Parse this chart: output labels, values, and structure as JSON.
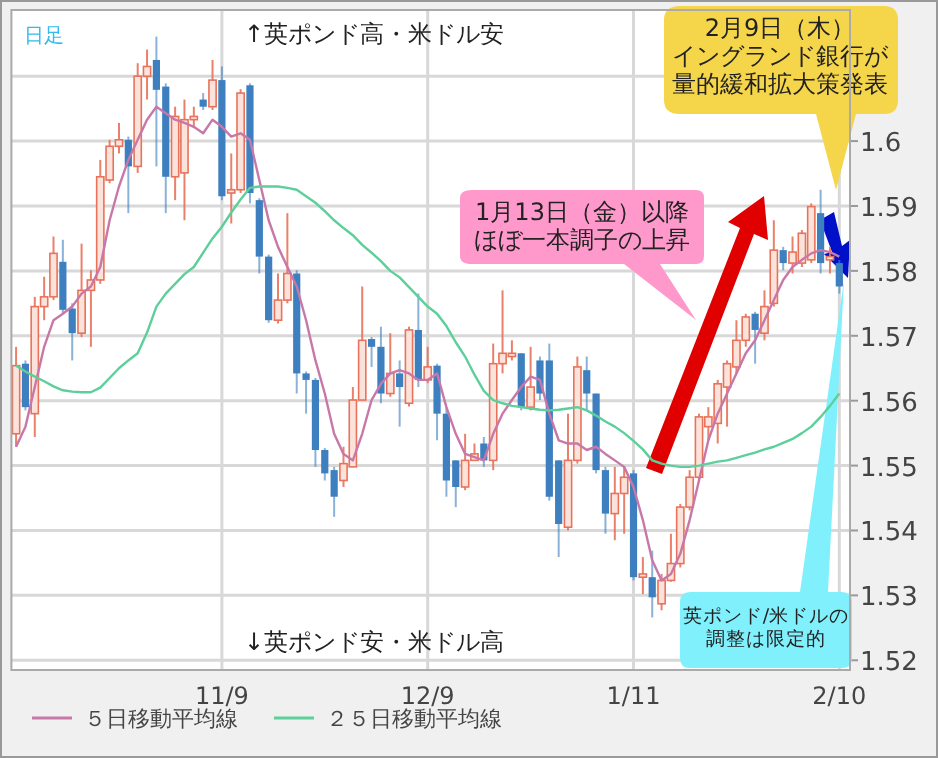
{
  "chart_data": {
    "type": "candlestick",
    "categories": [
      null,
      null,
      null,
      null,
      null,
      null,
      null,
      null,
      null,
      null,
      null,
      null,
      null,
      null,
      null,
      null,
      null,
      null,
      null,
      null,
      null,
      null,
      "11/9",
      null,
      null,
      null,
      null,
      null,
      null,
      null,
      null,
      null,
      null,
      null,
      null,
      null,
      null,
      null,
      null,
      null,
      null,
      null,
      null,
      null,
      "12/9",
      null,
      null,
      null,
      null,
      null,
      null,
      null,
      null,
      null,
      null,
      null,
      null,
      null,
      null,
      null,
      null,
      null,
      null,
      null,
      null,
      null,
      "1/11",
      null,
      null,
      null,
      null,
      null,
      null,
      null,
      null,
      null,
      null,
      null,
      null,
      null,
      null,
      null,
      null,
      null,
      null,
      null,
      null,
      null,
      "2/10"
    ],
    "ohlc": [
      [
        1.5549,
        1.5683,
        1.5529,
        1.5654
      ],
      [
        1.5657,
        1.5662,
        1.5585,
        1.559
      ],
      [
        1.558,
        1.576,
        1.5544,
        1.5745
      ],
      [
        1.5745,
        1.5791,
        1.5724,
        1.576
      ],
      [
        1.576,
        1.5853,
        1.5755,
        1.5827
      ],
      [
        1.5814,
        1.5848,
        1.5734,
        1.574
      ],
      [
        1.5742,
        1.575,
        1.5662,
        1.5704
      ],
      [
        1.5704,
        1.5842,
        1.5698,
        1.577
      ],
      [
        1.577,
        1.5801,
        1.5683,
        1.5786
      ],
      [
        1.5786,
        1.5971,
        1.578,
        1.5945
      ],
      [
        1.594,
        1.6002,
        1.5935,
        1.5992
      ],
      [
        1.5992,
        1.6028,
        1.5981,
        1.6002
      ],
      [
        1.6002,
        1.6007,
        1.5889,
        1.5961
      ],
      [
        1.5961,
        1.612,
        1.5951,
        1.61
      ],
      [
        1.61,
        1.6141,
        1.6064,
        1.6115
      ],
      [
        1.6125,
        1.6161,
        1.5961,
        1.6079
      ],
      [
        1.6084,
        1.6089,
        1.5889,
        1.5945
      ],
      [
        1.5945,
        1.6053,
        1.5909,
        1.6038
      ],
      [
        1.5951,
        1.6064,
        1.5878,
        1.6033
      ],
      [
        1.6033,
        1.6053,
        1.602,
        1.6038
      ],
      [
        1.6064,
        1.6074,
        1.6048,
        1.6053
      ],
      [
        1.6053,
        1.6125,
        1.6048,
        1.6094
      ],
      [
        1.6094,
        1.6115,
        1.5909,
        1.5915
      ],
      [
        1.592,
        1.5981,
        1.5873,
        1.5925
      ],
      [
        1.5925,
        1.608,
        1.592,
        1.6074
      ],
      [
        1.6086,
        1.6089,
        1.5904,
        1.592
      ],
      [
        1.5909,
        1.5912,
        1.5796,
        1.5822
      ],
      [
        1.5822,
        1.5825,
        1.572,
        1.5724
      ],
      [
        1.5724,
        1.5796,
        1.5719,
        1.5755
      ],
      [
        1.5755,
        1.5889,
        1.575,
        1.5796
      ],
      [
        1.5796,
        1.5801,
        1.5611,
        1.5642
      ],
      [
        1.5642,
        1.5645,
        1.558,
        1.5632
      ],
      [
        1.5632,
        1.5635,
        1.5498,
        1.5524
      ],
      [
        1.5524,
        1.5527,
        1.5477,
        1.5488
      ],
      [
        1.5493,
        1.5498,
        1.5421,
        1.5452
      ],
      [
        1.5477,
        1.5529,
        1.5467,
        1.5503
      ],
      [
        1.5498,
        1.5621,
        1.5498,
        1.5601
      ],
      [
        1.5601,
        1.5776,
        1.5601,
        1.5693
      ],
      [
        1.5695,
        1.5698,
        1.5652,
        1.5683
      ],
      [
        1.5683,
        1.5714,
        1.5596,
        1.5611
      ],
      [
        1.5611,
        1.5704,
        1.5606,
        1.5642
      ],
      [
        1.5642,
        1.5662,
        1.556,
        1.5621
      ],
      [
        1.5596,
        1.5714,
        1.5591,
        1.5709
      ],
      [
        1.5709,
        1.5765,
        1.5621,
        1.5632
      ],
      [
        1.5632,
        1.5683,
        1.5627,
        1.5652
      ],
      [
        1.5654,
        1.5657,
        1.5539,
        1.558
      ],
      [
        1.558,
        1.559,
        1.5452,
        1.5477
      ],
      [
        1.5508,
        1.5508,
        1.5436,
        1.5467
      ],
      [
        1.5467,
        1.5549,
        1.5462,
        1.5508
      ],
      [
        1.5508,
        1.5534,
        1.5508,
        1.5518
      ],
      [
        1.5534,
        1.5544,
        1.5498,
        1.5508
      ],
      [
        1.5508,
        1.5688,
        1.5493,
        1.5657
      ],
      [
        1.5657,
        1.577,
        1.5642,
        1.5673
      ],
      [
        1.5668,
        1.5693,
        1.5662,
        1.5673
      ],
      [
        1.5673,
        1.5673,
        1.5585,
        1.559
      ],
      [
        1.559,
        1.5683,
        1.5585,
        1.5621
      ],
      [
        1.5662,
        1.5668,
        1.5601,
        1.5611
      ],
      [
        1.5662,
        1.5688,
        1.5446,
        1.5452
      ],
      [
        1.5508,
        1.5508,
        1.5359,
        1.541
      ],
      [
        1.5405,
        1.558,
        1.54,
        1.5508
      ],
      [
        1.5508,
        1.5668,
        1.5503,
        1.5652
      ],
      [
        1.5647,
        1.5668,
        1.5585,
        1.5611
      ],
      [
        1.5611,
        1.5611,
        1.5488,
        1.5493
      ],
      [
        1.5493,
        1.5498,
        1.5395,
        1.5426
      ],
      [
        1.5426,
        1.5498,
        1.5385,
        1.5457
      ],
      [
        1.5457,
        1.5498,
        1.5395,
        1.5482
      ],
      [
        1.5488,
        1.5493,
        1.5323,
        1.5328
      ],
      [
        1.5328,
        1.5359,
        1.5302,
        1.5333
      ],
      [
        1.5328,
        1.5369,
        1.5266,
        1.5297
      ],
      [
        1.5287,
        1.5333,
        1.5277,
        1.5323
      ],
      [
        1.5323,
        1.5395,
        1.5321,
        1.5349
      ],
      [
        1.5349,
        1.5441,
        1.5343,
        1.5436
      ],
      [
        1.5436,
        1.5493,
        1.5431,
        1.5482
      ],
      [
        1.5482,
        1.558,
        1.5477,
        1.5575
      ],
      [
        1.556,
        1.559,
        1.5539,
        1.5575
      ],
      [
        1.5565,
        1.5632,
        1.5534,
        1.5626
      ],
      [
        1.5621,
        1.5662,
        1.556,
        1.5657
      ],
      [
        1.5652,
        1.5724,
        1.5642,
        1.5693
      ],
      [
        1.5693,
        1.5734,
        1.5683,
        1.5729
      ],
      [
        1.5734,
        1.5737,
        1.5657,
        1.5709
      ],
      [
        1.5704,
        1.577,
        1.5693,
        1.5745
      ],
      [
        1.575,
        1.5878,
        1.5745,
        1.5832
      ],
      [
        1.5832,
        1.5837,
        1.5801,
        1.5812
      ],
      [
        1.5812,
        1.5853,
        1.5796,
        1.5829
      ],
      [
        1.5812,
        1.5863,
        1.5806,
        1.5858
      ],
      [
        1.5817,
        1.5904,
        1.5812,
        1.5899
      ],
      [
        1.5889,
        1.5925,
        1.5796,
        1.5812
      ],
      [
        1.5817,
        1.5837,
        1.5796,
        1.5822
      ],
      [
        1.5812,
        1.5817,
        1.5765,
        1.5776
      ]
    ],
    "colors": [
      "#e8735a",
      "#3d7fbf",
      "#e8735a",
      "#e8735a",
      "#e8735a",
      "#3d7fbf",
      "#3d7fbf",
      "#e8735a",
      "#e8735a",
      "#e8735a",
      "#e8735a",
      "#e8735a",
      "#3d7fbf",
      "#e8735a",
      "#e8735a",
      "#3d7fbf",
      "#3d7fbf",
      "#e8735a",
      "#e8735a",
      "#e8735a",
      "#3d7fbf",
      "#e8735a",
      "#3d7fbf",
      "#e8735a",
      "#e8735a",
      "#3d7fbf",
      "#3d7fbf",
      "#3d7fbf",
      "#e8735a",
      "#e8735a",
      "#3d7fbf",
      "#3d7fbf",
      "#3d7fbf",
      "#3d7fbf",
      "#3d7fbf",
      "#e8735a",
      "#e8735a",
      "#e8735a",
      "#3d7fbf",
      "#3d7fbf",
      "#e8735a",
      "#3d7fbf",
      "#e8735a",
      "#3d7fbf",
      "#e8735a",
      "#3d7fbf",
      "#3d7fbf",
      "#3d7fbf",
      "#e8735a",
      "#e8735a",
      "#3d7fbf",
      "#e8735a",
      "#e8735a",
      "#e8735a",
      "#3d7fbf",
      "#e8735a",
      "#3d7fbf",
      "#3d7fbf",
      "#3d7fbf",
      "#e8735a",
      "#e8735a",
      "#3d7fbf",
      "#3d7fbf",
      "#3d7fbf",
      "#e8735a",
      "#e8735a",
      "#3d7fbf",
      "#e8735a",
      "#3d7fbf",
      "#e8735a",
      "#e8735a",
      "#e8735a",
      "#e8735a",
      "#e8735a",
      "#e8735a",
      "#e8735a",
      "#e8735a",
      "#e8735a",
      "#e8735a",
      "#3d7fbf",
      "#e8735a",
      "#e8735a",
      "#3d7fbf",
      "#e8735a",
      "#e8735a",
      "#e8735a",
      "#3d7fbf",
      "#e8735a",
      "#3d7fbf"
    ],
    "series": [
      {
        "name": "５日移動平均線",
        "type": "line",
        "color": "#c878a8",
        "values": [
          1.5529,
          1.556,
          1.5621,
          1.5683,
          1.5724,
          1.5734,
          1.5745,
          1.5765,
          1.5776,
          1.5806,
          1.5878,
          1.593,
          1.5971,
          1.6002,
          1.6033,
          1.6053,
          1.6043,
          1.6033,
          1.6028,
          1.6022,
          1.6012,
          1.6033,
          1.6022,
          1.6007,
          1.6012,
          1.6002,
          1.594,
          1.5878,
          1.5837,
          1.5806,
          1.5776,
          1.5724,
          1.5662,
          1.5611,
          1.5549,
          1.5518,
          1.5508,
          1.5549,
          1.5601,
          1.5626,
          1.5642,
          1.5647,
          1.5642,
          1.5632,
          1.5632,
          1.5642,
          1.559,
          1.5549,
          1.5518,
          1.5513,
          1.5508,
          1.5549,
          1.558,
          1.5601,
          1.5621,
          1.5637,
          1.5632,
          1.558,
          1.5539,
          1.5534,
          1.5534,
          1.5524,
          1.5529,
          1.5518,
          1.5508,
          1.5498,
          1.5467,
          1.5416,
          1.5354,
          1.5323,
          1.5333,
          1.5364,
          1.5416,
          1.5477,
          1.5539,
          1.558,
          1.5611,
          1.5642,
          1.5673,
          1.5693,
          1.5724,
          1.5755,
          1.5786,
          1.5806,
          1.5817,
          1.5827,
          1.5832,
          1.5829,
          1.5822
        ]
      },
      {
        "name": "２５日移動平均線",
        "type": "line",
        "color": "#5ccf9a",
        "values": [
          1.5654,
          1.5645,
          1.5637,
          1.563,
          1.5622,
          1.5616,
          1.5614,
          1.5613,
          1.5613,
          1.562,
          1.5635,
          1.565,
          1.5662,
          1.5673,
          1.5705,
          1.5745,
          1.5765,
          1.578,
          1.5795,
          1.5806,
          1.5828,
          1.585,
          1.5868,
          1.589,
          1.591,
          1.5928,
          1.593,
          1.593,
          1.593,
          1.5928,
          1.5925,
          1.5915,
          1.5905,
          1.5892,
          1.5878,
          1.5866,
          1.5855,
          1.584,
          1.5828,
          1.5815,
          1.58,
          1.579,
          1.5775,
          1.576,
          1.5745,
          1.5734,
          1.5715,
          1.569,
          1.5668,
          1.564,
          1.5615,
          1.5601,
          1.5596,
          1.5592,
          1.559,
          1.5588,
          1.5586,
          1.5585,
          1.5586,
          1.5588,
          1.559,
          1.5585,
          1.5577,
          1.5568,
          1.556,
          1.555,
          1.5538,
          1.5525,
          1.5508,
          1.5503,
          1.55,
          1.5498,
          1.5498,
          1.55,
          1.5503,
          1.5506,
          1.5508,
          1.5512,
          1.5516,
          1.552,
          1.5525,
          1.5529,
          1.5535,
          1.5541,
          1.555,
          1.556,
          1.5575,
          1.5592,
          1.5611
        ]
      }
    ],
    "ylim": [
      1.5185,
      1.6202
    ],
    "yticks": [
      1.52,
      1.53,
      1.54,
      1.55,
      1.56,
      1.57,
      1.58,
      1.59,
      1.6,
      {
        "value": 1.61,
        "label": null
      }
    ],
    "grid": true,
    "legend": "bottom",
    "annotations": [
      "日足",
      "↑英ポンド高・米ドル安",
      "↓英ポンド安・米ドル高",
      "1月13日（金）以降ほぼ一本調子の上昇",
      "2月9日（木）イングランド銀行が量的緩和拡大策発表",
      "英ポンド/米ドルの調整は限定的"
    ]
  }
}
